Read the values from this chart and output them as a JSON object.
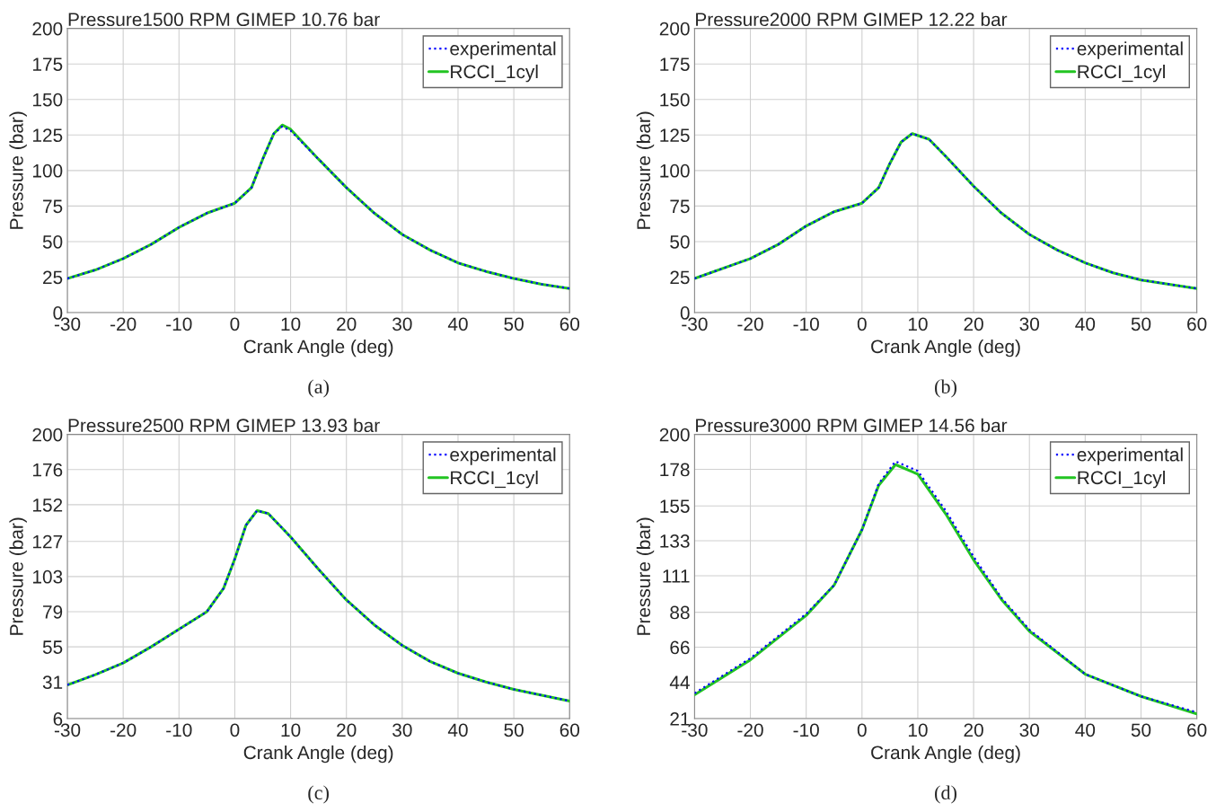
{
  "chart_data": [
    {
      "type": "line",
      "title": "Pressure1500 RPM GIMEP 10.76 bar",
      "xlabel": "Crank Angle (deg)",
      "ylabel": "Pressure (bar)",
      "annotations": [
        "(a)"
      ],
      "xlim": [
        -30,
        60
      ],
      "xticks": [
        -30,
        -20,
        -10,
        0,
        10,
        20,
        30,
        40,
        50,
        60
      ],
      "ylim": [
        0,
        200
      ],
      "yticks": [
        0,
        25,
        50,
        75,
        100,
        125,
        150,
        175,
        200
      ],
      "grid": true,
      "legend": "top right",
      "x": [
        -30,
        -25,
        -20,
        -15,
        -10,
        -5,
        0,
        3,
        5,
        7,
        8.5,
        10,
        15,
        20,
        25,
        30,
        35,
        40,
        45,
        50,
        55,
        60
      ],
      "series": [
        {
          "name": "experimental",
          "color": "#0000ff",
          "line_style": "dotted",
          "values": [
            24,
            30,
            38,
            48,
            60,
            70,
            77,
            88,
            108,
            126,
            131,
            128,
            108,
            88,
            70,
            55,
            44,
            35,
            29,
            24,
            20,
            17
          ]
        },
        {
          "name": "RCCI_1cyl",
          "color": "#22c422",
          "line_style": "solid",
          "values": [
            24,
            30,
            38,
            48,
            60,
            70,
            77,
            88,
            108,
            126,
            132,
            129,
            108,
            88,
            70,
            55,
            44,
            35,
            29,
            24,
            20,
            17
          ]
        }
      ]
    },
    {
      "type": "line",
      "title": "Pressure2000 RPM GIMEP 12.22 bar",
      "xlabel": "Crank Angle (deg)",
      "ylabel": "Pressure (bar)",
      "annotations": [
        "(b)"
      ],
      "xlim": [
        -30,
        60
      ],
      "xticks": [
        -30,
        -20,
        -10,
        0,
        10,
        20,
        30,
        40,
        50,
        60
      ],
      "ylim": [
        0,
        200
      ],
      "yticks": [
        0,
        25,
        50,
        75,
        100,
        125,
        150,
        175,
        200
      ],
      "grid": true,
      "legend": "top right",
      "x": [
        -30,
        -20,
        -15,
        -10,
        -5,
        0,
        3,
        5,
        7,
        9,
        12,
        15,
        20,
        25,
        30,
        35,
        40,
        45,
        50,
        55,
        60
      ],
      "series": [
        {
          "name": "experimental",
          "color": "#0000ff",
          "line_style": "dotted",
          "values": [
            24,
            38,
            48,
            61,
            71,
            77,
            88,
            105,
            120,
            126,
            122,
            110,
            89,
            70,
            55,
            44,
            35,
            28,
            23,
            20,
            17
          ]
        },
        {
          "name": "RCCI_1cyl",
          "color": "#22c422",
          "line_style": "solid",
          "values": [
            24,
            38,
            48,
            61,
            71,
            77,
            88,
            105,
            120,
            126,
            122,
            110,
            89,
            70,
            55,
            44,
            35,
            28,
            23,
            20,
            17
          ]
        }
      ]
    },
    {
      "type": "line",
      "title": "Pressure2500 RPM GIMEP 13.93 bar",
      "xlabel": "Crank Angle (deg)",
      "ylabel": "Pressure (bar)",
      "annotations": [
        "(c)"
      ],
      "xlim": [
        -30,
        60
      ],
      "xticks": [
        -30,
        -20,
        -10,
        0,
        10,
        20,
        30,
        40,
        50,
        60
      ],
      "ylim": [
        6,
        200
      ],
      "yticks": [
        6,
        31,
        55,
        79,
        103,
        127,
        152,
        176,
        200
      ],
      "grid": true,
      "legend": "top right",
      "x": [
        -30,
        -25,
        -20,
        -15,
        -10,
        -5,
        -2,
        0,
        2,
        4,
        6,
        10,
        15,
        20,
        25,
        30,
        35,
        40,
        45,
        50,
        55,
        60
      ],
      "series": [
        {
          "name": "experimental",
          "color": "#0000ff",
          "line_style": "dotted",
          "values": [
            29,
            36,
            44,
            55,
            67,
            79,
            95,
            115,
            138,
            148,
            146,
            130,
            108,
            87,
            70,
            56,
            45,
            37,
            31,
            26,
            22,
            18
          ]
        },
        {
          "name": "RCCI_1cyl",
          "color": "#22c422",
          "line_style": "solid",
          "values": [
            29,
            36,
            44,
            55,
            67,
            79,
            95,
            115,
            138,
            148,
            146,
            130,
            108,
            87,
            70,
            56,
            45,
            37,
            31,
            26,
            22,
            18
          ]
        }
      ]
    },
    {
      "type": "line",
      "title": "Pressure3000 RPM GIMEP 14.56 bar",
      "xlabel": "Crank Angle (deg)",
      "ylabel": "Pressure (bar)",
      "annotations": [
        "(d)"
      ],
      "xlim": [
        -30,
        60
      ],
      "xticks": [
        -30,
        -20,
        -10,
        0,
        10,
        20,
        30,
        40,
        50,
        60
      ],
      "ylim": [
        21,
        200
      ],
      "yticks": [
        21,
        44,
        66,
        88,
        111,
        133,
        155,
        178,
        200
      ],
      "grid": true,
      "legend": "top right",
      "x": [
        -30,
        -20,
        -10,
        -5,
        0,
        3,
        6,
        10,
        15,
        20,
        25,
        30,
        40,
        50,
        60
      ],
      "series": [
        {
          "name": "experimental",
          "color": "#0000ff",
          "line_style": "dotted",
          "values": [
            37,
            59,
            87,
            105,
            140,
            169,
            183,
            177,
            152,
            123,
            97,
            77,
            49,
            35,
            25
          ]
        },
        {
          "name": "RCCI_1cyl",
          "color": "#22c422",
          "line_style": "solid",
          "values": [
            36,
            58,
            86,
            105,
            140,
            168,
            181,
            175,
            150,
            121,
            96,
            76,
            49,
            35,
            24
          ]
        }
      ]
    }
  ]
}
